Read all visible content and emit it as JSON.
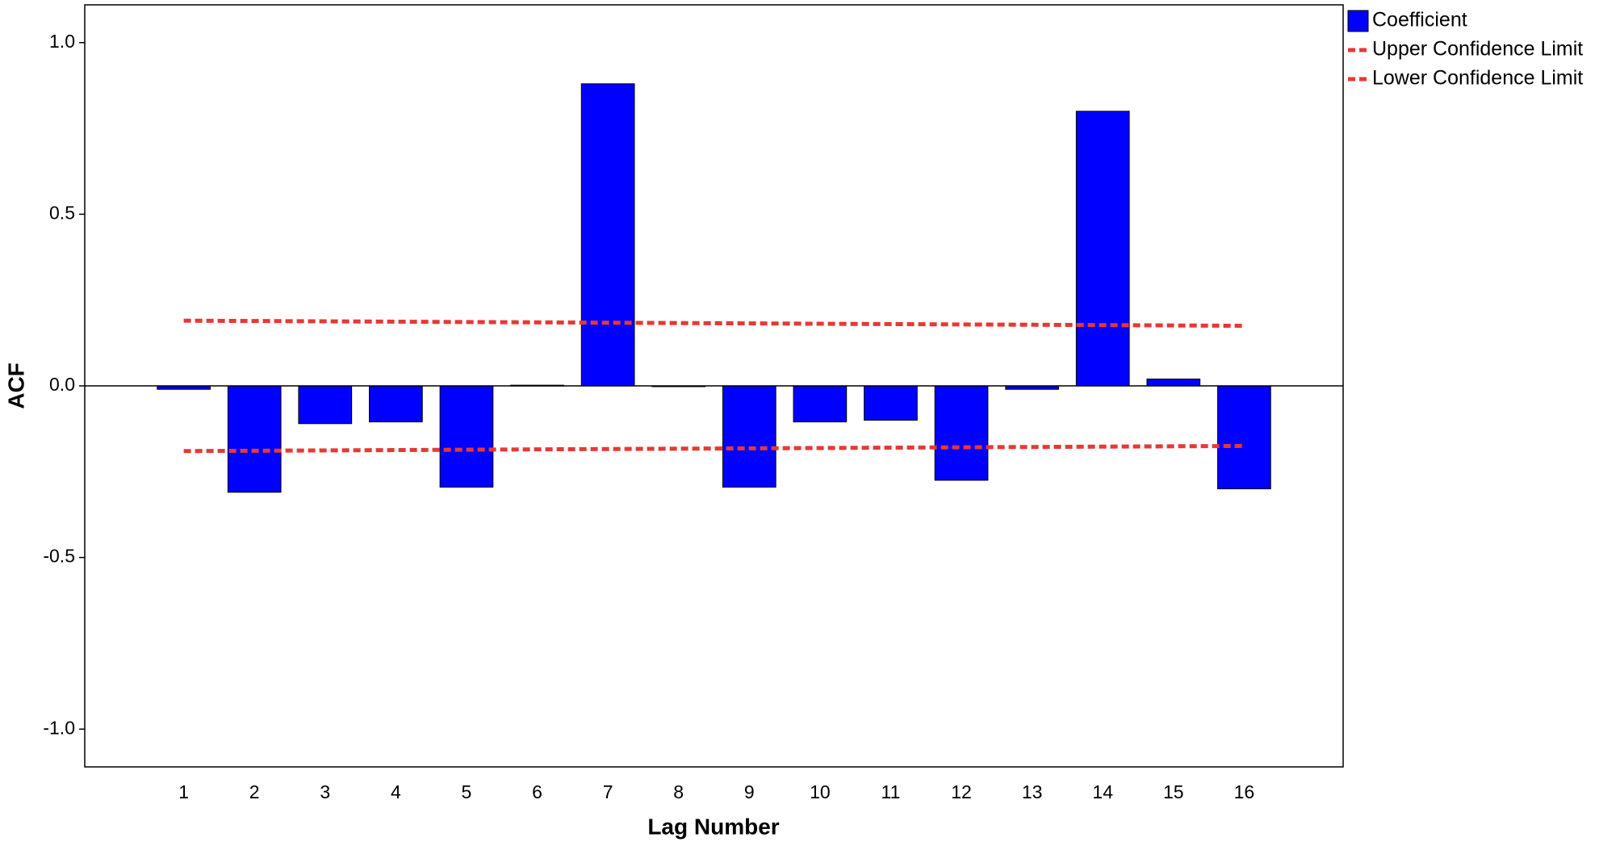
{
  "chart_data": {
    "type": "bar",
    "x_label": "Lag Number",
    "y_label": "ACF",
    "categories": [
      "1",
      "2",
      "3",
      "4",
      "5",
      "6",
      "7",
      "8",
      "9",
      "10",
      "11",
      "12",
      "13",
      "14",
      "15",
      "16"
    ],
    "series": [
      {
        "name": "Coefficient",
        "type": "bar",
        "color": "#0000ff",
        "values": [
          -0.01,
          -0.31,
          -0.11,
          -0.105,
          -0.295,
          0.002,
          0.88,
          -0.001,
          -0.295,
          -0.105,
          -0.1,
          -0.275,
          -0.01,
          0.8,
          0.02,
          -0.3
        ]
      },
      {
        "name": "Upper Confidence Limit",
        "type": "line",
        "color": "#e53935",
        "values": [
          0.19,
          0.189,
          0.188,
          0.187,
          0.186,
          0.185,
          0.184,
          0.183,
          0.182,
          0.181,
          0.18,
          0.179,
          0.178,
          0.177,
          0.176,
          0.175
        ]
      },
      {
        "name": "Lower Confidence Limit",
        "type": "line",
        "color": "#e53935",
        "values": [
          -0.19,
          -0.189,
          -0.188,
          -0.187,
          -0.186,
          -0.185,
          -0.184,
          -0.183,
          -0.182,
          -0.181,
          -0.18,
          -0.179,
          -0.178,
          -0.177,
          -0.176,
          -0.175
        ]
      }
    ],
    "ylim": [
      -1.11,
      1.11
    ],
    "yticks": [
      {
        "value": 1,
        "label": "1.0"
      },
      0.5,
      {
        "value": 0,
        "label": "0.0"
      },
      -0.5,
      {
        "value": -1,
        "label": "-1.0"
      }
    ]
  }
}
